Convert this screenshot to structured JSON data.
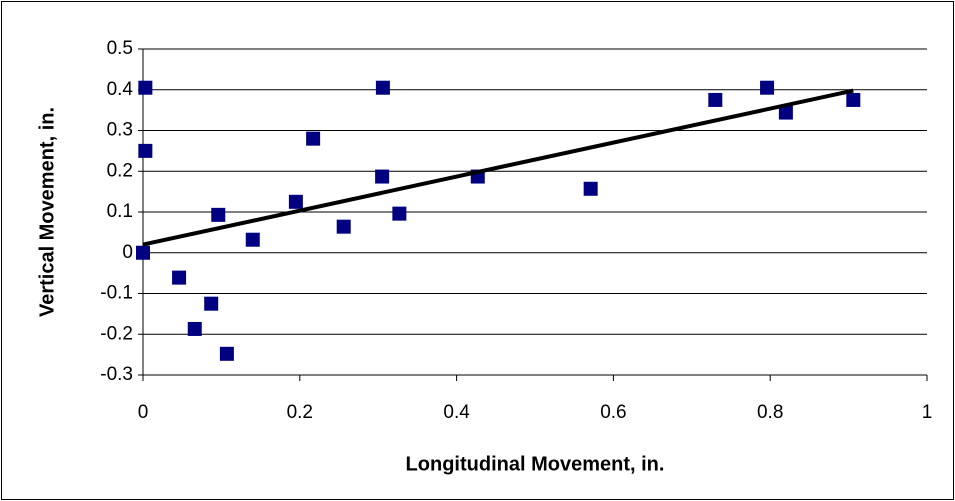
{
  "chart_data": {
    "type": "scatter",
    "x_label": "Longitudinal Movement, in.",
    "y_label": "Vertical Movement, in.",
    "x": [
      0.003,
      0.003,
      0,
      0.046,
      0.066,
      0.087,
      0.107,
      0.096,
      0.14,
      0.195,
      0.217,
      0.256,
      0.306,
      0.305,
      0.327,
      0.427,
      0.571,
      0.73,
      0.796,
      0.82,
      0.906
    ],
    "values": [
      0.405,
      0.25,
      0,
      -0.061,
      -0.187,
      -0.125,
      -0.248,
      0.093,
      0.032,
      0.125,
      0.28,
      0.064,
      0.405,
      0.187,
      0.096,
      0.187,
      0.157,
      0.375,
      0.405,
      0.344,
      0.375
    ],
    "color": "#000080",
    "trendline": {
      "x": [
        0,
        0.906
      ],
      "values": [
        0.02,
        0.398
      ],
      "color": "#000000"
    },
    "xlim": [
      0,
      1
    ],
    "xticks": [
      0,
      0.2,
      0.4,
      0.6,
      0.8,
      1
    ],
    "ylim": [
      -0.3,
      0.5
    ],
    "yticks": [
      0.5,
      0.4,
      0.3,
      0.2,
      0.1,
      0,
      -0.1,
      -0.2,
      -0.3
    ],
    "grid": true
  }
}
